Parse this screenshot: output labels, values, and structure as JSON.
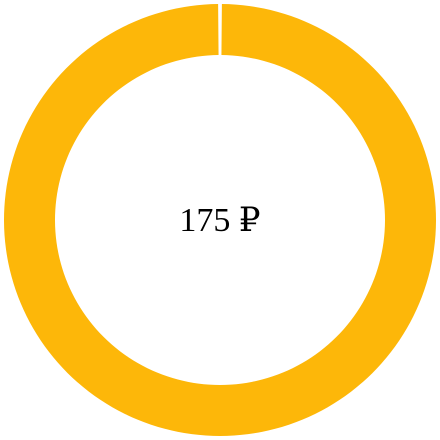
{
  "center_text": "175 ₽",
  "chart_data": {
    "type": "pie",
    "style": "donut",
    "title": "",
    "categories": [
      ""
    ],
    "values": [
      175
    ],
    "colors": [
      "#FDB709"
    ],
    "gap_color": "#ffffff",
    "legend": "none"
  }
}
